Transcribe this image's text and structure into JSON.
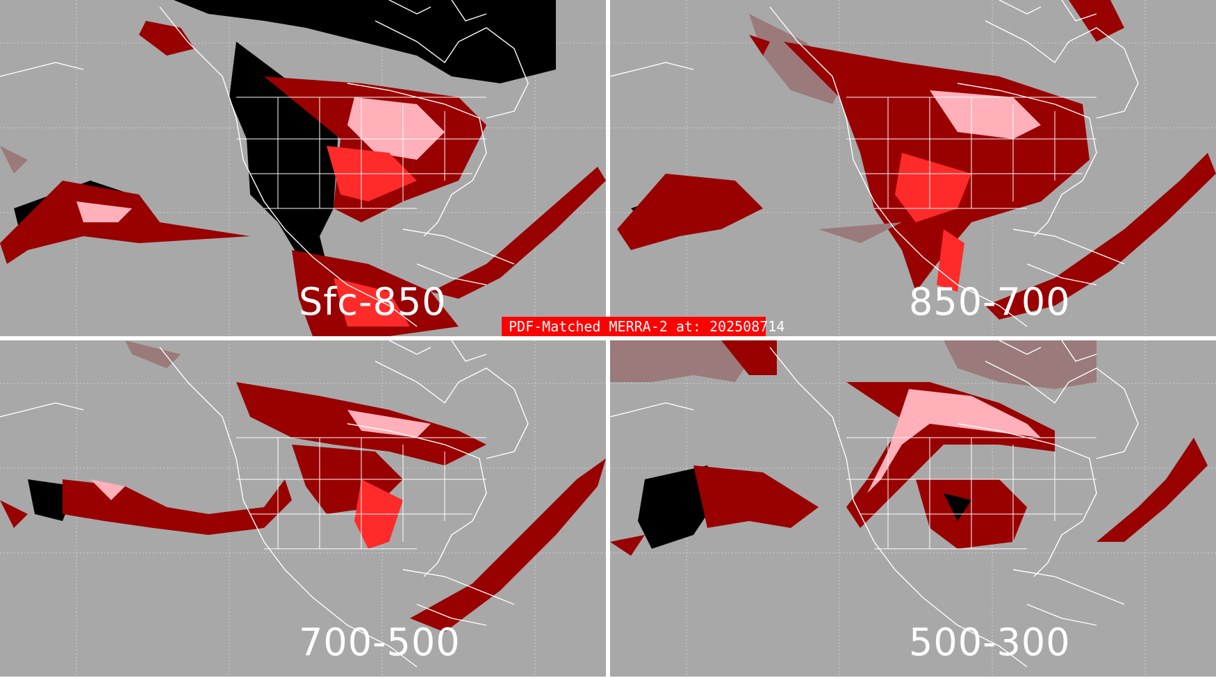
{
  "title": "PDF-Matched MERRA-2 at: 202508714",
  "colors": {
    "background": "#a8a8a8",
    "divider": "#ffffff",
    "coastline": "#ffffff",
    "black": "#000000",
    "dark_red": "#990000",
    "red": "#ff2a2a",
    "pink": "#ffb0b8",
    "muted": "#9a7a7a",
    "banner": "#ff0000"
  },
  "panels": [
    {
      "label": "Sfc-850"
    },
    {
      "label": "850-700"
    },
    {
      "label": "700-500"
    },
    {
      "label": "500-300"
    }
  ]
}
